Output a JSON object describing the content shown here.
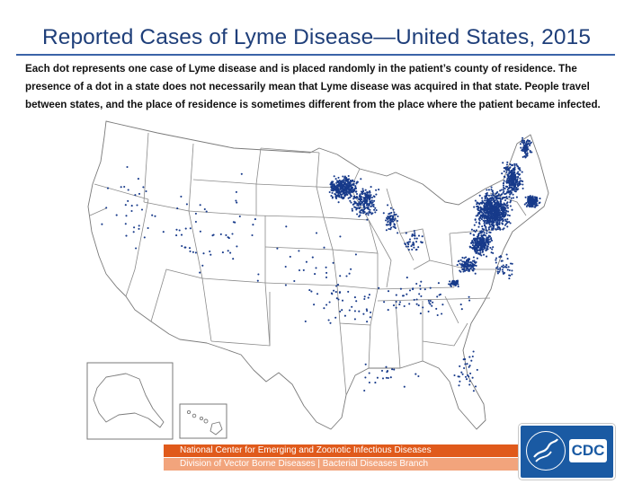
{
  "title": "Reported Cases of Lyme Disease—United States, 2015",
  "description": "Each dot represents one case of Lyme disease and is placed randomly in the patient’s county of residence. The presence of a dot in a state does not necessarily mean that Lyme disease was acquired in that state. People travel between states, and the place of residence is sometimes different from the place where the patient became infected.",
  "footer": {
    "line1": "National Center for Emerging and Zoonotic Infectious Diseases",
    "line2": "Division of Vector Borne Diseases | Bacterial Diseases Branch"
  },
  "logo": {
    "text": "CDC"
  },
  "colors": {
    "title": "#1f3f7a",
    "dot": "#173a8a",
    "banner_primary": "#e05a1b",
    "banner_secondary": "#f2a47c",
    "logo_bg": "#1a5aa3"
  },
  "map": {
    "layers": [
      "contiguous-us",
      "alaska-inset",
      "hawaii-inset"
    ],
    "dense_regions": [
      "Northeast",
      "Upper Midwest"
    ]
  }
}
